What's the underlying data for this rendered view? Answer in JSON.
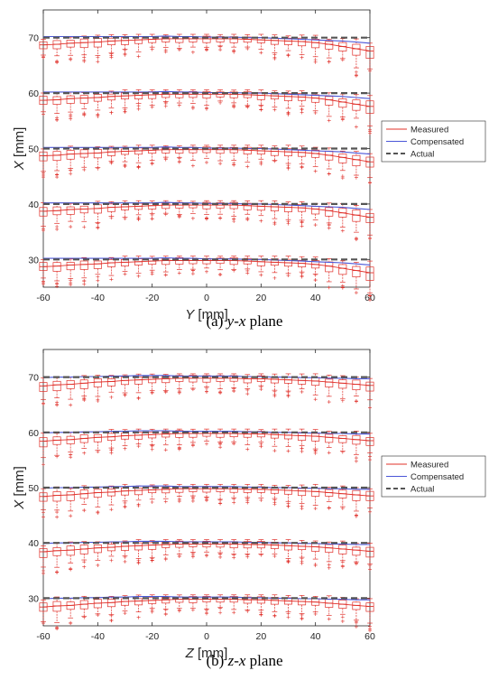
{
  "chart_data": [
    {
      "type": "box",
      "xlabel_var": "Y",
      "xlabel_unit": " [mm]",
      "ylabel_var": "X",
      "ylabel_unit": " [mm]",
      "xlim": [
        -60,
        60
      ],
      "ylim": [
        25,
        75
      ],
      "xticks": [
        -60,
        -40,
        -20,
        0,
        20,
        40,
        60
      ],
      "yticks": [
        30,
        40,
        50,
        60,
        70
      ],
      "grid": false,
      "legend_position": "right, outside plot",
      "box_positions": [
        -60,
        -55,
        -50,
        -45,
        -40,
        -35,
        -30,
        -25,
        -20,
        -15,
        -10,
        -5,
        0,
        5,
        10,
        15,
        20,
        25,
        30,
        35,
        40,
        45,
        50,
        55,
        60
      ],
      "actual_levels": [
        30,
        40,
        50,
        60,
        70
      ],
      "measured_deviation": [
        -1.3,
        -1.2,
        -1.0,
        -0.9,
        -0.8,
        -0.6,
        -0.5,
        -0.4,
        -0.3,
        -0.2,
        -0.2,
        -0.2,
        -0.2,
        -0.2,
        -0.2,
        -0.3,
        -0.4,
        -0.5,
        -0.6,
        -0.7,
        -0.9,
        -1.2,
        -1.6,
        -2.0,
        -2.4
      ],
      "compensated_deviation": [
        0.2,
        0.2,
        0.2,
        0.2,
        0.2,
        0.2,
        0.2,
        0.2,
        0.2,
        0.3,
        0.2,
        0.2,
        0.1,
        0.1,
        0.1,
        0.0,
        0.0,
        -0.1,
        -0.2,
        -0.3,
        -0.4,
        -0.5,
        -0.6,
        -0.8,
        -1.0
      ],
      "series": [
        {
          "name": "Measured",
          "color": "#e0302a",
          "style": "solid"
        },
        {
          "name": "Compensated",
          "color": "#4a56d8",
          "style": "solid"
        },
        {
          "name": "Actual",
          "color": "#555555",
          "style": "dashed"
        }
      ],
      "caption": {
        "prefix": "(a) ",
        "var1": "y",
        "sep": "-",
        "var2": "x",
        "suffix": " plane"
      }
    },
    {
      "type": "box",
      "xlabel_var": "Z",
      "xlabel_unit": " [mm]",
      "ylabel_var": "X",
      "ylabel_unit": " [mm]",
      "xlim": [
        -60,
        60
      ],
      "ylim": [
        25,
        75
      ],
      "xticks": [
        -60,
        -40,
        -20,
        0,
        20,
        40,
        60
      ],
      "yticks": [
        30,
        40,
        50,
        60,
        70
      ],
      "grid": false,
      "legend_position": "right, outside plot",
      "box_positions": [
        -60,
        -55,
        -50,
        -45,
        -40,
        -35,
        -30,
        -25,
        -20,
        -15,
        -10,
        -5,
        0,
        5,
        10,
        15,
        20,
        25,
        30,
        35,
        40,
        45,
        50,
        55,
        60
      ],
      "actual_levels": [
        30,
        40,
        50,
        60,
        70
      ],
      "measured_deviation": [
        -1.6,
        -1.4,
        -1.3,
        -1.1,
        -0.9,
        -0.8,
        -0.6,
        -0.5,
        -0.4,
        -0.3,
        -0.2,
        -0.2,
        -0.2,
        -0.2,
        -0.2,
        -0.3,
        -0.3,
        -0.4,
        -0.5,
        -0.6,
        -0.7,
        -0.9,
        -1.1,
        -1.3,
        -1.5
      ],
      "compensated_deviation": [
        -0.1,
        0.0,
        0.0,
        0.1,
        0.1,
        0.2,
        0.2,
        0.3,
        0.3,
        0.3,
        0.2,
        0.2,
        0.2,
        0.2,
        0.2,
        0.1,
        0.1,
        0.0,
        0.0,
        -0.1,
        -0.1,
        -0.2,
        -0.2,
        -0.3,
        -0.3
      ],
      "series": [
        {
          "name": "Measured",
          "color": "#e0302a",
          "style": "solid"
        },
        {
          "name": "Compensated",
          "color": "#4a56d8",
          "style": "solid"
        },
        {
          "name": "Actual",
          "color": "#555555",
          "style": "dashed"
        }
      ],
      "caption": {
        "prefix": "(b) ",
        "var1": "z",
        "sep": "-",
        "var2": "x",
        "suffix": " plane"
      }
    }
  ]
}
